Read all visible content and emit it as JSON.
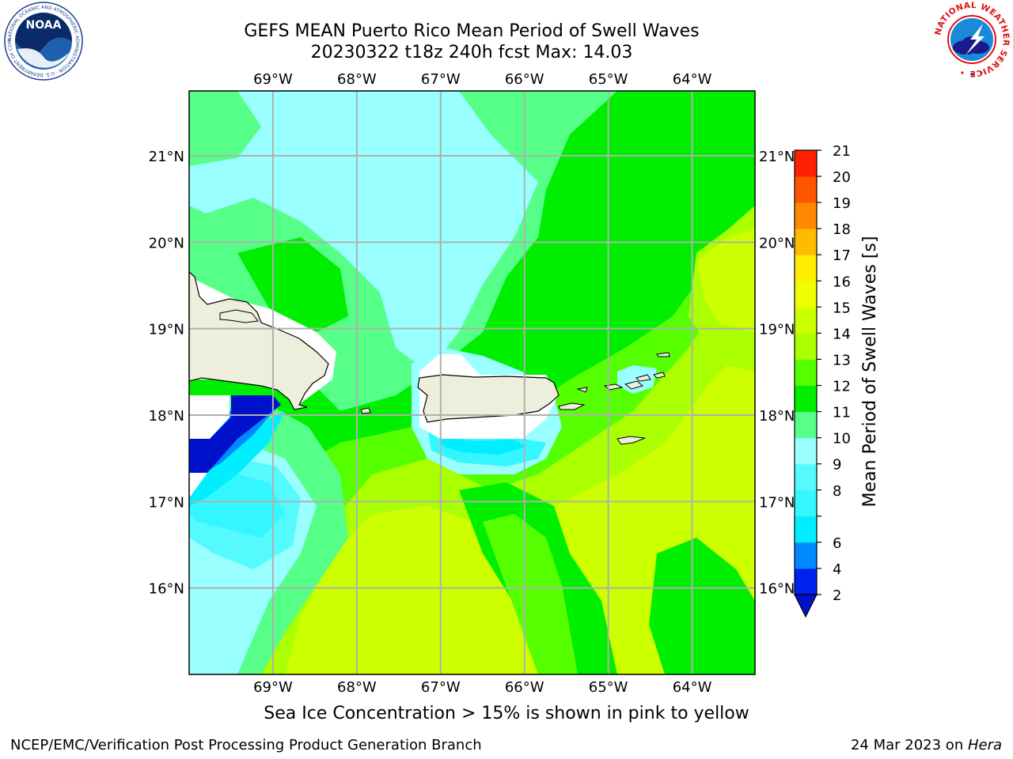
{
  "title_line1": "GEFS MEAN Puerto Rico Mean Period of Swell Waves",
  "title_line2": "20230322 t18z 240h fcst   Max: 14.03",
  "note": "Sea Ice Concentration > 15% is shown in pink to yellow",
  "footer_left": "NCEP/EMC/Verification Post Processing Product Generation Branch",
  "footer_right_date": "24 Mar 2023 on ",
  "footer_right_host": "Hera",
  "logos": {
    "left": "NOAA",
    "left_ring": "NATIONAL OCEANIC AND ATMOSPHERIC ADMINISTRATION · U.S. DEPARTMENT OF COMMERCE",
    "right_ring": "NATIONAL WEATHER SERVICE"
  },
  "map": {
    "lon_labels": [
      "69°W",
      "68°W",
      "67°W",
      "66°W",
      "65°W",
      "64°W"
    ],
    "lat_labels": [
      "21°N",
      "20°N",
      "19°N",
      "18°N",
      "17°N",
      "16°N"
    ],
    "lon_range": [
      -70.0,
      -63.25
    ],
    "lat_range": [
      15.0,
      21.75
    ]
  },
  "colorbar": {
    "label": "Mean Period of Swell Waves [s]",
    "levels": [
      2,
      4,
      6,
      7,
      8,
      9,
      10,
      11,
      12,
      13,
      14,
      15,
      16,
      17,
      18,
      19,
      20,
      21
    ],
    "tick_labels": [
      "2",
      "4",
      "6",
      "8",
      "9",
      "10",
      "11",
      "12",
      "13",
      "14",
      "15",
      "16",
      "17",
      "18",
      "19",
      "20",
      "21"
    ],
    "colors": [
      "#0022ee",
      "#0088ff",
      "#00eeff",
      "#33f6ff",
      "#55faff",
      "#99ffff",
      "#55ff88",
      "#00ee00",
      "#55ff00",
      "#aaff00",
      "#ccff00",
      "#eeff00",
      "#ffee00",
      "#ffbb00",
      "#ff8800",
      "#ff5500",
      "#ff2200"
    ],
    "extend_color": "#0011cc"
  }
}
